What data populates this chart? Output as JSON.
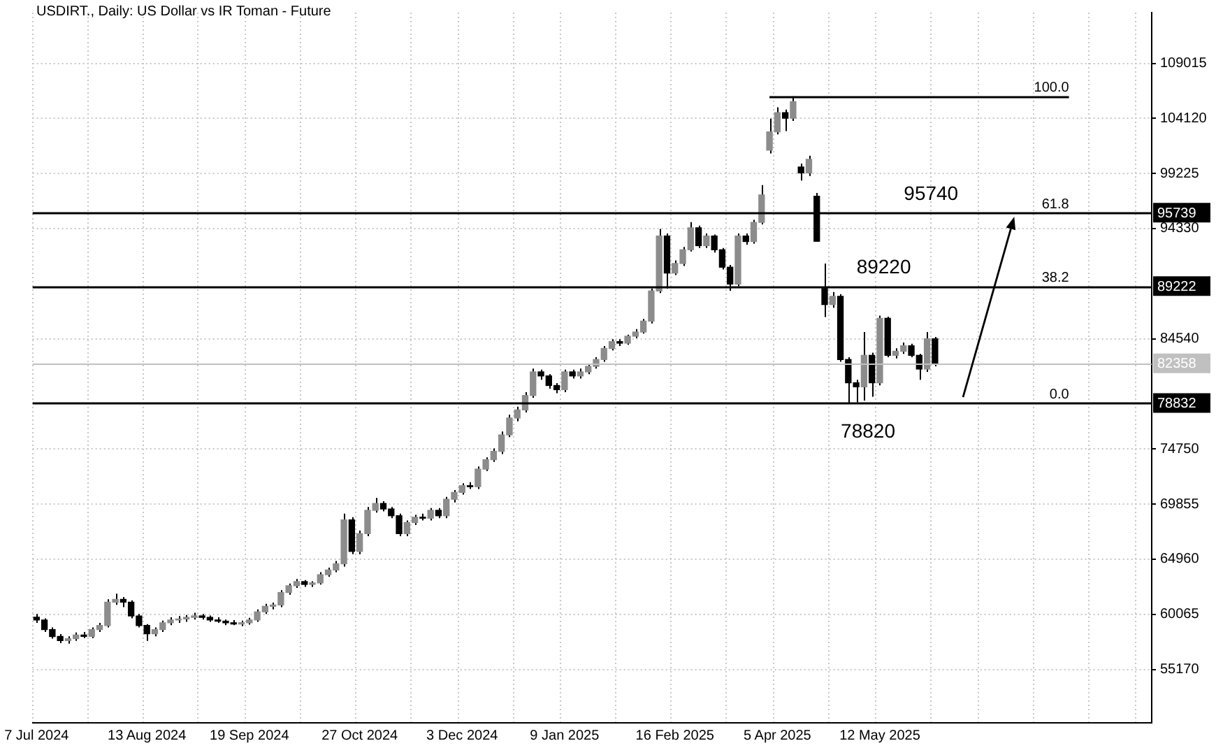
{
  "chart_data": {
    "type": "candlestick",
    "title": "USDIRT., Daily:  US Dollar vs IR Toman - Future",
    "categories": [
      "7 Jul 2024",
      null,
      null,
      null,
      null,
      null,
      null,
      null,
      null,
      null,
      null,
      null,
      null,
      null,
      "13 Aug 2024",
      null,
      null,
      null,
      null,
      null,
      null,
      null,
      null,
      null,
      null,
      null,
      null,
      "19 Sep 2024",
      null,
      null,
      null,
      null,
      null,
      null,
      null,
      null,
      null,
      null,
      null,
      null,
      null,
      "27 Oct 2024",
      null,
      null,
      null,
      null,
      null,
      null,
      null,
      null,
      null,
      null,
      null,
      null,
      "3 Dec 2024",
      null,
      null,
      null,
      null,
      null,
      null,
      null,
      null,
      null,
      null,
      null,
      null,
      "9 Jan 2025",
      null,
      null,
      null,
      null,
      null,
      null,
      null,
      null,
      null,
      null,
      null,
      null,
      null,
      "16 Feb 2025",
      null,
      null,
      null,
      null,
      null,
      null,
      null,
      null,
      null,
      null,
      null,
      null,
      "5 Apr 2025",
      null,
      null,
      null,
      null,
      null,
      null,
      null,
      null,
      null,
      null,
      null,
      null,
      "12 May 2025",
      null,
      null,
      null,
      null,
      null,
      null,
      null,
      null,
      null,
      null,
      null,
      null,
      null,
      null,
      null,
      null,
      null,
      null,
      null,
      null,
      null,
      null,
      null,
      null,
      null,
      null,
      null,
      null,
      null,
      null,
      null,
      null,
      null,
      null
    ],
    "ohlc": [
      [
        59800,
        60100,
        59300,
        59560
      ],
      [
        59560,
        59700,
        58500,
        58700
      ],
      [
        58700,
        58900,
        57900,
        58090
      ],
      [
        58090,
        58300,
        57500,
        57730
      ],
      [
        57730,
        58100,
        57450,
        57900
      ],
      [
        57900,
        58450,
        57700,
        58220
      ],
      [
        58220,
        58500,
        57950,
        58100
      ],
      [
        58100,
        58900,
        57950,
        58700
      ],
      [
        58700,
        59300,
        58500,
        59070
      ],
      [
        59070,
        61400,
        58900,
        61140
      ],
      [
        61140,
        61900,
        60900,
        61380
      ],
      [
        61380,
        61600,
        60700,
        61140
      ],
      [
        61140,
        61300,
        59700,
        59920
      ],
      [
        59920,
        60100,
        58900,
        59070
      ],
      [
        59070,
        59200,
        57700,
        58340
      ],
      [
        58340,
        58900,
        58100,
        58700
      ],
      [
        58700,
        59500,
        58500,
        59310
      ],
      [
        59310,
        59800,
        59100,
        59560
      ],
      [
        59560,
        59900,
        59300,
        59650
      ],
      [
        59650,
        60000,
        59400,
        59790
      ],
      [
        59790,
        60200,
        59600,
        59920
      ],
      [
        59920,
        60100,
        59600,
        59790
      ],
      [
        59790,
        59950,
        59400,
        59560
      ],
      [
        59560,
        59800,
        59300,
        59450
      ],
      [
        59450,
        59600,
        59100,
        59310
      ],
      [
        59310,
        59550,
        59100,
        59200
      ],
      [
        59200,
        59500,
        59000,
        59310
      ],
      [
        59310,
        59750,
        59150,
        59560
      ],
      [
        59560,
        60500,
        59400,
        60280
      ],
      [
        60280,
        61000,
        60100,
        60770
      ],
      [
        60770,
        61100,
        60500,
        60890
      ],
      [
        60890,
        62200,
        60700,
        62000
      ],
      [
        62000,
        62800,
        61800,
        62600
      ],
      [
        62600,
        63200,
        62400,
        62970
      ],
      [
        62970,
        63100,
        62500,
        62720
      ],
      [
        62720,
        63000,
        62500,
        62850
      ],
      [
        62850,
        63800,
        62700,
        63580
      ],
      [
        63580,
        64200,
        63400,
        64000
      ],
      [
        64000,
        64800,
        63800,
        64550
      ],
      [
        64550,
        69000,
        64300,
        68450
      ],
      [
        68450,
        68700,
        65400,
        65650
      ],
      [
        65650,
        67500,
        65400,
        67230
      ],
      [
        67230,
        69600,
        67000,
        69300
      ],
      [
        69300,
        70400,
        69100,
        69910
      ],
      [
        69910,
        70100,
        69200,
        69420
      ],
      [
        69420,
        69600,
        68600,
        68820
      ],
      [
        68820,
        69000,
        67000,
        67230
      ],
      [
        67230,
        68400,
        67000,
        68210
      ],
      [
        68210,
        68900,
        68000,
        68690
      ],
      [
        68690,
        69000,
        68400,
        68600
      ],
      [
        68600,
        69500,
        68400,
        69300
      ],
      [
        69300,
        69500,
        68600,
        68820
      ],
      [
        68820,
        70500,
        68600,
        70280
      ],
      [
        70280,
        71100,
        70000,
        70890
      ],
      [
        70890,
        71700,
        70700,
        71490
      ],
      [
        71490,
        71800,
        71200,
        71400
      ],
      [
        71400,
        73200,
        71200,
        72960
      ],
      [
        72960,
        74000,
        72800,
        73800
      ],
      [
        73800,
        74800,
        73600,
        74540
      ],
      [
        74540,
        76300,
        74300,
        76000
      ],
      [
        76000,
        77800,
        75800,
        77500
      ],
      [
        77500,
        78500,
        77200,
        78220
      ],
      [
        78220,
        79800,
        78000,
        79500
      ],
      [
        79500,
        81900,
        79300,
        81600
      ],
      [
        81600,
        81800,
        80900,
        81240
      ],
      [
        81240,
        81400,
        80100,
        80390
      ],
      [
        80390,
        80600,
        79700,
        80020
      ],
      [
        80020,
        81800,
        79800,
        81600
      ],
      [
        81600,
        81800,
        81000,
        81240
      ],
      [
        81240,
        81900,
        81000,
        81600
      ],
      [
        81600,
        82300,
        81400,
        82090
      ],
      [
        82090,
        82900,
        81900,
        82700
      ],
      [
        82700,
        83900,
        82500,
        83680
      ],
      [
        83680,
        84500,
        83500,
        84290
      ],
      [
        84290,
        84500,
        83900,
        84150
      ],
      [
        84150,
        84900,
        84000,
        84770
      ],
      [
        84770,
        85400,
        84600,
        85140
      ],
      [
        85140,
        86300,
        85000,
        86110
      ],
      [
        86110,
        89000,
        85900,
        88790
      ],
      [
        88790,
        94300,
        88600,
        93670
      ],
      [
        93670,
        93900,
        89000,
        90380
      ],
      [
        90380,
        91500,
        90200,
        91230
      ],
      [
        91230,
        92700,
        91000,
        92450
      ],
      [
        92450,
        94900,
        92300,
        94400
      ],
      [
        94400,
        94600,
        92600,
        92810
      ],
      [
        92810,
        93900,
        92600,
        93670
      ],
      [
        93670,
        93800,
        92200,
        92450
      ],
      [
        92450,
        92600,
        90700,
        90900
      ],
      [
        90900,
        91100,
        88800,
        89400
      ],
      [
        89400,
        93900,
        89200,
        93670
      ],
      [
        93670,
        93900,
        92900,
        93180
      ],
      [
        93180,
        95100,
        93000,
        94880
      ],
      [
        94880,
        98200,
        94700,
        97320
      ],
      [
        101300,
        104100,
        101000,
        102920
      ],
      [
        102920,
        105100,
        102700,
        104630
      ],
      [
        104630,
        104900,
        103000,
        104140
      ],
      [
        104140,
        106090,
        103900,
        105600
      ],
      [
        99800,
        100100,
        98600,
        99270
      ],
      [
        99270,
        100800,
        99000,
        100490
      ],
      [
        97200,
        97500,
        93200,
        93200
      ],
      [
        89000,
        91230,
        86480,
        87580
      ],
      [
        87580,
        88700,
        87300,
        88310
      ],
      [
        88310,
        88500,
        82500,
        82700
      ],
      [
        82700,
        82900,
        78840,
        80630
      ],
      [
        80630,
        80900,
        78900,
        80270
      ],
      [
        80270,
        85140,
        79050,
        83070
      ],
      [
        83070,
        83300,
        79400,
        80630
      ],
      [
        80630,
        86600,
        80400,
        86360
      ],
      [
        86360,
        86500,
        82900,
        83070
      ],
      [
        83070,
        83700,
        82800,
        83430
      ],
      [
        83430,
        84200,
        83200,
        83920
      ],
      [
        83920,
        84100,
        82900,
        83070
      ],
      [
        83070,
        83200,
        80900,
        81850
      ],
      [
        81850,
        85140,
        81600,
        84540
      ],
      [
        84540,
        84700,
        82100,
        82360
      ],
      null,
      null,
      null,
      null,
      null,
      null,
      null,
      null,
      null,
      null,
      null,
      null,
      null,
      null,
      null,
      null,
      null,
      null,
      null,
      null,
      null,
      null,
      null,
      null,
      null,
      null,
      null
    ],
    "color": "#000000",
    "colors": [
      "#000000",
      "#000000",
      "#000000",
      "#000000",
      "#8c8c8c",
      "#8c8c8c",
      "#000000",
      "#8c8c8c",
      "#8c8c8c",
      "#8c8c8c",
      "#8c8c8c",
      "#000000",
      "#000000",
      "#000000",
      "#000000",
      "#8c8c8c",
      "#8c8c8c",
      "#8c8c8c",
      "#8c8c8c",
      "#8c8c8c",
      "#8c8c8c",
      "#000000",
      "#000000",
      "#000000",
      "#000000",
      "#000000",
      "#8c8c8c",
      "#8c8c8c",
      "#8c8c8c",
      "#8c8c8c",
      "#8c8c8c",
      "#8c8c8c",
      "#8c8c8c",
      "#8c8c8c",
      "#000000",
      "#8c8c8c",
      "#8c8c8c",
      "#8c8c8c",
      "#8c8c8c",
      "#8c8c8c",
      "#000000",
      "#8c8c8c",
      "#8c8c8c",
      "#8c8c8c",
      "#000000",
      "#000000",
      "#000000",
      "#8c8c8c",
      "#8c8c8c",
      "#000000",
      "#8c8c8c",
      "#000000",
      "#8c8c8c",
      "#8c8c8c",
      "#8c8c8c",
      "#000000",
      "#8c8c8c",
      "#8c8c8c",
      "#8c8c8c",
      "#8c8c8c",
      "#8c8c8c",
      "#8c8c8c",
      "#8c8c8c",
      "#8c8c8c",
      "#000000",
      "#000000",
      "#000000",
      "#8c8c8c",
      "#000000",
      "#8c8c8c",
      "#8c8c8c",
      "#8c8c8c",
      "#8c8c8c",
      "#8c8c8c",
      "#000000",
      "#8c8c8c",
      "#8c8c8c",
      "#8c8c8c",
      "#8c8c8c",
      "#8c8c8c",
      "#000000",
      "#8c8c8c",
      "#8c8c8c",
      "#8c8c8c",
      "#000000",
      "#8c8c8c",
      "#000000",
      "#000000",
      "#000000",
      "#8c8c8c",
      "#000000",
      "#8c8c8c",
      "#8c8c8c",
      "#8c8c8c",
      "#8c8c8c",
      "#000000",
      "#8c8c8c",
      "#000000",
      "#8c8c8c",
      "#000000",
      "#000000",
      "#8c8c8c",
      "#000000",
      "#000000",
      "#000000",
      "#8c8c8c",
      "#000000",
      "#8c8c8c",
      "#000000",
      "#8c8c8c",
      "#8c8c8c",
      "#000000",
      "#000000",
      "#8c8c8c",
      "#000000",
      null,
      null,
      null,
      null,
      null,
      null,
      null,
      null,
      null,
      null,
      null,
      null,
      null,
      null,
      null,
      null,
      null,
      null,
      null,
      null,
      null,
      null,
      null,
      null,
      null,
      null,
      null
    ],
    "ylim": [
      50420,
      113520
    ],
    "yticks": [
      109015,
      104120,
      99225,
      94330,
      84540,
      74750,
      69855,
      64960,
      60065,
      55170
    ],
    "grid": true,
    "ref_lines": [
      {
        "axis": "y",
        "value": 106090,
        "label": null
      },
      {
        "axis": "y",
        "value": 95739,
        "label": "95739"
      },
      {
        "axis": "y",
        "value": 89222,
        "label": "89222"
      },
      {
        "axis": "y",
        "value": 78832,
        "label": "78832"
      },
      {
        "axis": "y",
        "value": 82358,
        "label": "82358",
        "color": "#c0c0c0"
      }
    ],
    "annotations": [
      "100.0",
      "61.8",
      "38.2",
      "0.0",
      "95740",
      "89220",
      "78820"
    ]
  }
}
